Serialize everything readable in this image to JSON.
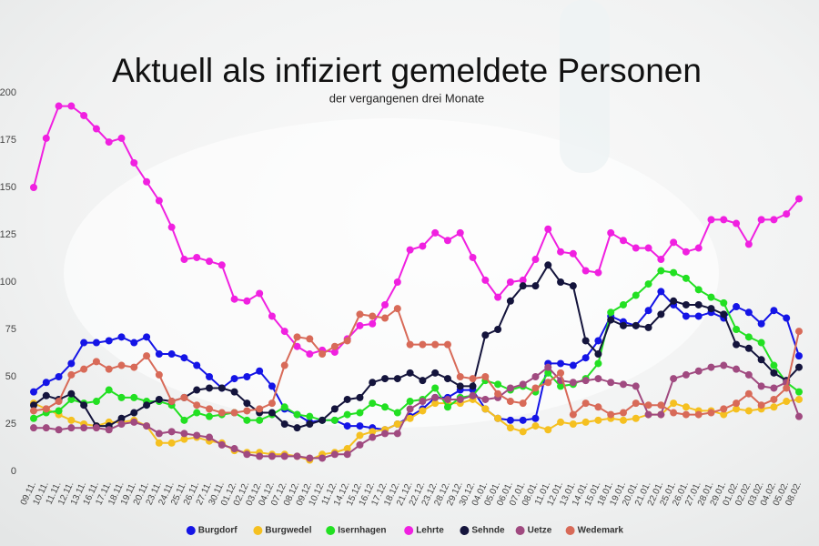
{
  "chart_data": {
    "type": "line",
    "title": "Aktuell als infiziert gemeldete Personen",
    "subtitle": "der vergangenen drei Monate",
    "categories": [
      "09.11.",
      "10.11.",
      "11.11.",
      "12.11.",
      "13.11.",
      "16.11.",
      "17.11.",
      "18.11.",
      "19.11.",
      "20.11.",
      "23.11.",
      "24.11.",
      "25.11.",
      "26.11.",
      "27.11.",
      "30.11.",
      "01.12.",
      "02.12.",
      "03.12.",
      "04.12.",
      "07.12.",
      "08.12.",
      "09.12.",
      "10.12.",
      "11.12.",
      "14.12.",
      "15.12.",
      "16.12.",
      "17.12.",
      "18.12.",
      "21.12.",
      "22.12.",
      "23.12.",
      "28.12.",
      "29.12.",
      "30.12.",
      "04.01.",
      "05.01.",
      "06.01.",
      "07.01.",
      "08.01.",
      "11.01.",
      "12.01.",
      "13.01.",
      "14.01.",
      "15.01.",
      "18.01.",
      "19.01.",
      "20.01.",
      "21.01.",
      "22.01.",
      "25.01.",
      "26.01.",
      "27.01.",
      "28.01.",
      "29.01.",
      "01.02.",
      "02.02.",
      "03.02.",
      "04.02.",
      "05.02.",
      "08.02."
    ],
    "series": [
      {
        "name": "Burgdorf",
        "color": "#1414e6",
        "values": [
          42,
          47,
          50,
          57,
          68,
          68,
          69,
          71,
          68,
          71,
          62,
          62,
          60,
          56,
          50,
          44,
          49,
          50,
          53,
          45,
          33,
          30,
          26,
          27,
          27,
          24,
          24,
          23,
          22,
          25,
          29,
          33,
          39,
          39,
          43,
          43,
          33,
          28,
          27,
          27,
          28,
          57,
          57,
          56,
          60,
          69,
          82,
          79,
          77,
          85,
          95,
          88,
          82,
          82,
          84,
          81,
          87,
          84,
          78,
          85,
          81,
          61
        ]
      },
      {
        "name": "Burgwedel",
        "color": "#f5c020",
        "values": [
          36,
          33,
          30,
          27,
          25,
          24,
          26,
          26,
          27,
          24,
          15,
          15,
          17,
          18,
          16,
          15,
          11,
          10,
          10,
          9,
          9,
          8,
          6,
          9,
          10,
          12,
          19,
          21,
          22,
          25,
          28,
          32,
          36,
          36,
          36,
          38,
          33,
          28,
          23,
          21,
          24,
          22,
          26,
          25,
          26,
          27,
          28,
          27,
          28,
          30,
          30,
          36,
          34,
          32,
          32,
          30,
          33,
          32,
          33,
          34,
          37,
          38
        ]
      },
      {
        "name": "Isernhagen",
        "color": "#22e022",
        "values": [
          28,
          31,
          32,
          38,
          36,
          37,
          43,
          39,
          39,
          37,
          37,
          35,
          27,
          31,
          29,
          30,
          31,
          27,
          27,
          30,
          34,
          30,
          29,
          27,
          27,
          30,
          31,
          36,
          34,
          31,
          37,
          38,
          44,
          34,
          39,
          40,
          48,
          46,
          43,
          45,
          42,
          52,
          45,
          46,
          49,
          57,
          84,
          88,
          93,
          99,
          106,
          105,
          102,
          96,
          92,
          89,
          75,
          71,
          68,
          56,
          47,
          42
        ]
      },
      {
        "name": "Lehrte",
        "color": "#f020e0",
        "values": [
          150,
          176,
          193,
          193,
          188,
          181,
          174,
          176,
          163,
          153,
          143,
          129,
          112,
          113,
          111,
          109,
          91,
          90,
          94,
          82,
          74,
          66,
          62,
          64,
          63,
          70,
          77,
          78,
          88,
          100,
          117,
          119,
          126,
          122,
          126,
          113,
          101,
          92,
          100,
          101,
          112,
          128,
          116,
          115,
          106,
          105,
          126,
          122,
          118,
          118,
          112,
          121,
          116,
          118,
          133,
          133,
          131,
          120,
          133,
          133,
          136,
          144
        ]
      },
      {
        "name": "Sehnde",
        "color": "#14143c",
        "values": [
          35,
          40,
          38,
          41,
          35,
          24,
          24,
          28,
          31,
          35,
          38,
          37,
          39,
          43,
          44,
          44,
          42,
          36,
          31,
          31,
          25,
          23,
          25,
          27,
          33,
          38,
          39,
          47,
          49,
          49,
          52,
          48,
          52,
          49,
          45,
          45,
          72,
          75,
          90,
          98,
          98,
          109,
          100,
          98,
          69,
          62,
          80,
          77,
          77,
          76,
          83,
          90,
          88,
          88,
          86,
          83,
          67,
          65,
          59,
          52,
          48,
          55
        ]
      },
      {
        "name": "Uetze",
        "color": "#a04a80",
        "values": [
          23,
          23,
          22,
          23,
          23,
          23,
          22,
          25,
          26,
          24,
          20,
          21,
          20,
          19,
          18,
          14,
          12,
          9,
          8,
          8,
          8,
          8,
          7,
          7,
          9,
          9,
          14,
          18,
          20,
          20,
          33,
          37,
          39,
          38,
          38,
          40,
          38,
          39,
          44,
          46,
          50,
          55,
          48,
          47,
          48,
          49,
          47,
          46,
          45,
          30,
          30,
          49,
          51,
          53,
          55,
          56,
          54,
          51,
          45,
          44,
          47,
          29
        ]
      },
      {
        "name": "Wedemark",
        "color": "#d86a58",
        "values": [
          32,
          33,
          37,
          51,
          54,
          58,
          54,
          56,
          55,
          61,
          51,
          37,
          39,
          35,
          33,
          31,
          31,
          32,
          33,
          36,
          56,
          71,
          70,
          62,
          66,
          69,
          83,
          82,
          81,
          86,
          67,
          67,
          67,
          67,
          50,
          49,
          50,
          41,
          37,
          36,
          44,
          47,
          52,
          30,
          36,
          34,
          30,
          31,
          36,
          35,
          35,
          31,
          30,
          30,
          31,
          33,
          36,
          41,
          35,
          38,
          44,
          74
        ]
      }
    ],
    "ylim": [
      0,
      200
    ],
    "yticks": [
      0,
      25,
      50,
      75,
      100,
      125,
      150,
      175,
      200
    ],
    "grid": false,
    "legend": "bottom"
  }
}
